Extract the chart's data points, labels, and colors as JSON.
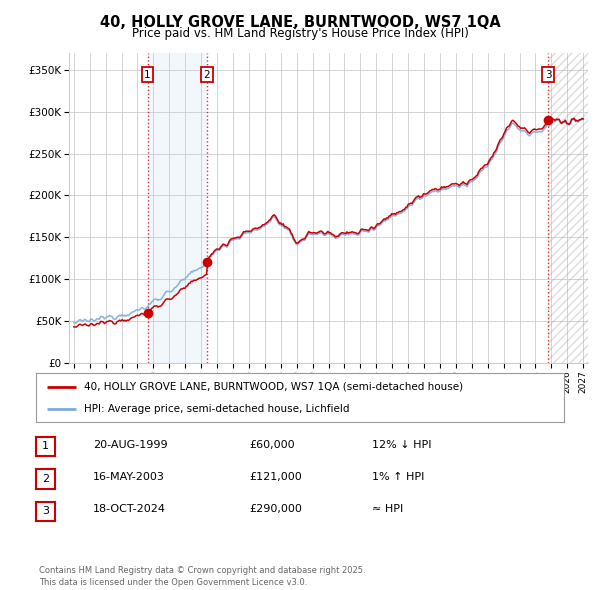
{
  "title": "40, HOLLY GROVE LANE, BURNTWOOD, WS7 1QA",
  "subtitle": "Price paid vs. HM Land Registry's House Price Index (HPI)",
  "xlim": [
    1994.7,
    2027.3
  ],
  "ylim": [
    0,
    370000
  ],
  "yticks": [
    0,
    50000,
    100000,
    150000,
    200000,
    250000,
    300000,
    350000
  ],
  "ytick_labels": [
    "£0",
    "£50K",
    "£100K",
    "£150K",
    "£200K",
    "£250K",
    "£300K",
    "£350K"
  ],
  "xticks": [
    1995,
    1996,
    1997,
    1998,
    1999,
    2000,
    2001,
    2002,
    2003,
    2004,
    2005,
    2006,
    2007,
    2008,
    2009,
    2010,
    2011,
    2012,
    2013,
    2014,
    2015,
    2016,
    2017,
    2018,
    2019,
    2020,
    2021,
    2022,
    2023,
    2024,
    2025,
    2026,
    2027
  ],
  "sale_dates": [
    1999.636,
    2003.37,
    2024.8
  ],
  "sale_prices": [
    60000,
    121000,
    290000
  ],
  "sale_labels": [
    "1",
    "2",
    "3"
  ],
  "hpi_color": "#7aabdb",
  "price_color": "#cc0000",
  "legend_line1": "40, HOLLY GROVE LANE, BURNTWOOD, WS7 1QA (semi-detached house)",
  "legend_line2": "HPI: Average price, semi-detached house, Lichfield",
  "table_data": [
    [
      "1",
      "20-AUG-1999",
      "£60,000",
      "12% ↓ HPI"
    ],
    [
      "2",
      "16-MAY-2003",
      "£121,000",
      "1% ↑ HPI"
    ],
    [
      "3",
      "18-OCT-2024",
      "£290,000",
      "≈ HPI"
    ]
  ],
  "footer": "Contains HM Land Registry data © Crown copyright and database right 2025.\nThis data is licensed under the Open Government Licence v3.0.",
  "bg_color": "#ffffff",
  "grid_color": "#cccccc"
}
